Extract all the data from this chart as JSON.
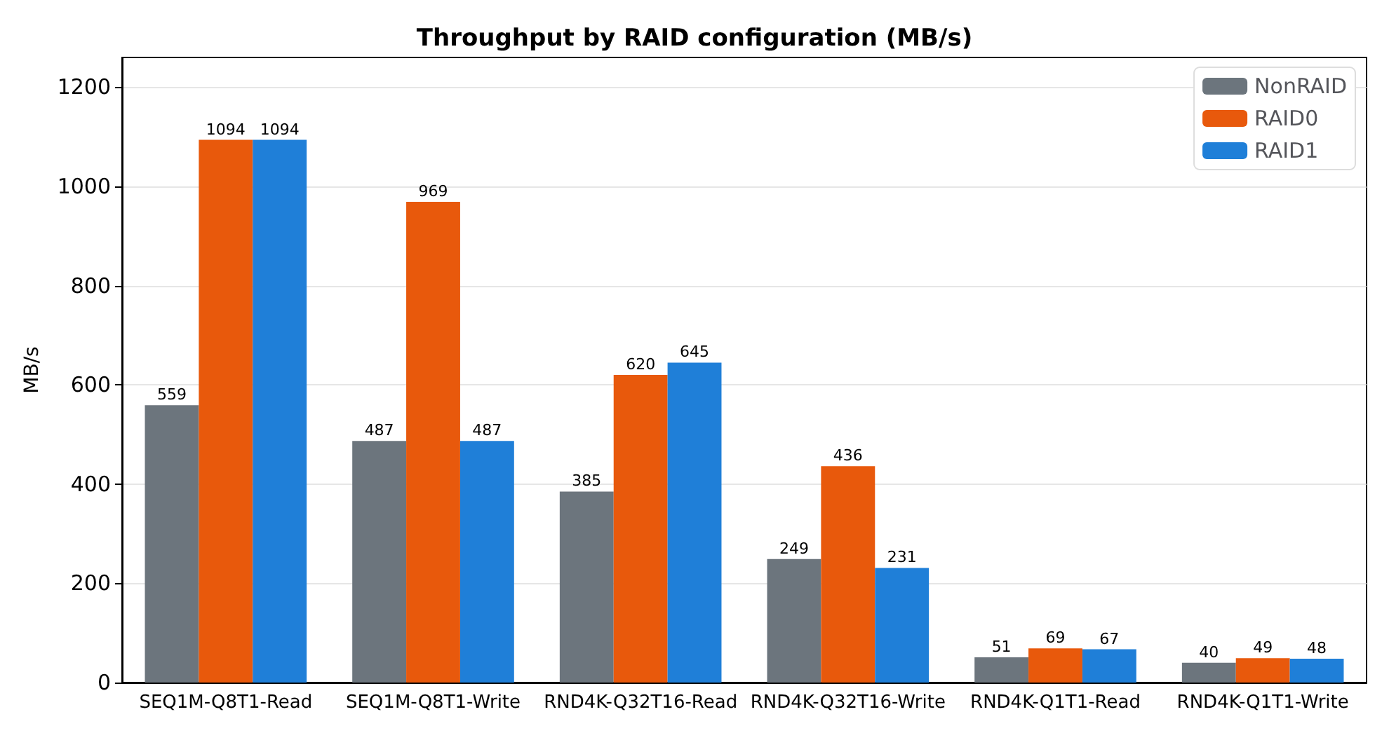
{
  "chart_data": {
    "type": "bar",
    "title": "Throughput by RAID configuration (MB/s)",
    "ylabel": "MB/s",
    "categories": [
      "SEQ1M-Q8T1-Read",
      "SEQ1M-Q8T1-Write",
      "RND4K-Q32T16-Read",
      "RND4K-Q32T16-Write",
      "RND4K-Q1T1-Read",
      "RND4K-Q1T1-Write"
    ],
    "series": [
      {
        "name": "NonRAID",
        "color": "#6c757d",
        "values": [
          559,
          487,
          385,
          249,
          51,
          40
        ]
      },
      {
        "name": "RAID0",
        "color": "#e8590c",
        "values": [
          1094,
          969,
          620,
          436,
          69,
          49
        ]
      },
      {
        "name": "RAID1",
        "color": "#1f7fd8",
        "values": [
          1094,
          487,
          645,
          231,
          67,
          48
        ]
      }
    ],
    "ylim": [
      0,
      1260
    ],
    "yticks": [
      0,
      200,
      400,
      600,
      800,
      1000,
      1200
    ],
    "grid": "y",
    "legend": "top right",
    "data_labels": true
  }
}
